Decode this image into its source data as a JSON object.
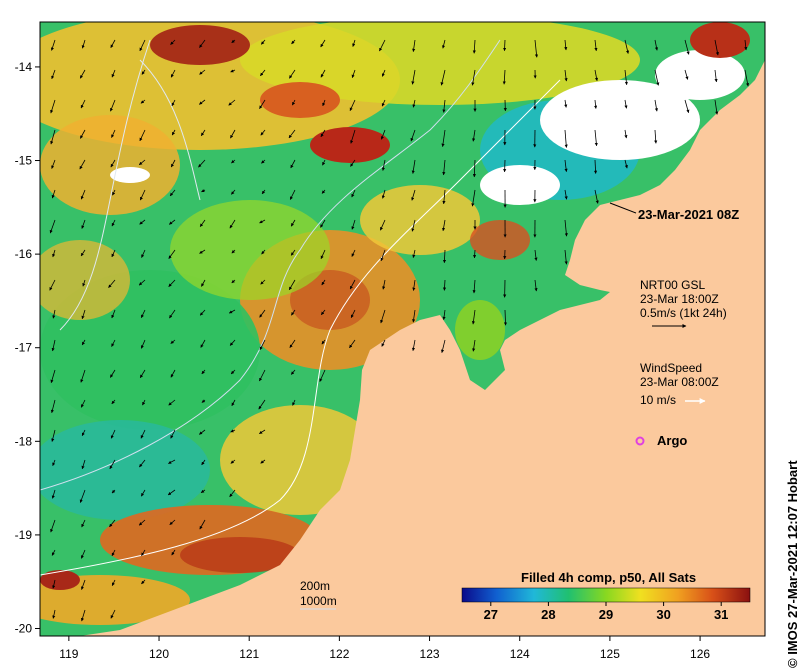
{
  "map": {
    "lon_ticks": [
      "119",
      "120",
      "121",
      "122",
      "123",
      "124",
      "125",
      "126"
    ],
    "lat_ticks": [
      "-14",
      "-15",
      "-16",
      "-17",
      "-18",
      "-19",
      "-20"
    ],
    "lon_range": [
      118.68,
      126.72
    ],
    "lat_range": [
      -20.08,
      -13.52
    ]
  },
  "annotations": {
    "timestamp": "23-Mar-2021 08Z",
    "current_title": "NRT00 GSL",
    "current_time": "23-Mar 18:00Z",
    "current_scale": "0.5m/s (1kt 24h)",
    "wind_title": "WindSpeed",
    "wind_time": "23-Mar 08:00Z",
    "wind_scale": "10 m/s",
    "argo_label": "Argo",
    "contour_200": "200m",
    "contour_1000": "1000m",
    "colorbar_title": "Filled 4h comp, p50, All Sats",
    "colorbar_ticks": [
      "27",
      "28",
      "29",
      "30",
      "31"
    ],
    "credit": "© IMOS 27-Mar-2021 12:07 Hobart"
  },
  "colors": {
    "land": "#fbc99d",
    "white_arrow": "#ffffff",
    "argo": "#e040e0",
    "colorbar": [
      "#0a0a8a",
      "#1060d0",
      "#20b8d8",
      "#20c070",
      "#88d820",
      "#f0e020",
      "#f0a020",
      "#d85018",
      "#8a1010"
    ]
  }
}
